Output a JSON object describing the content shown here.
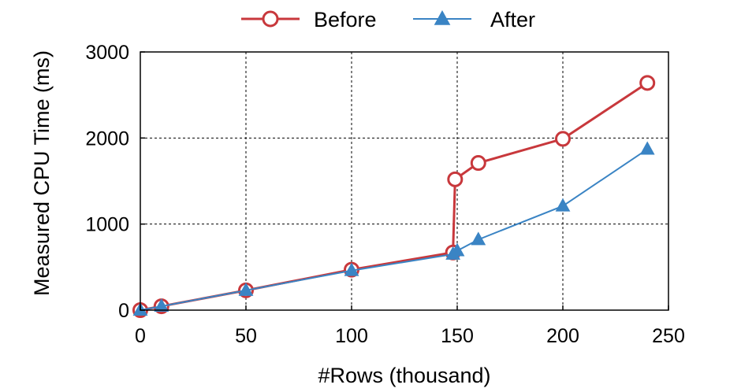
{
  "chart_data": {
    "type": "line",
    "xlabel": "#Rows (thousand)",
    "ylabel": "Measured CPU Time (ms)",
    "xlim": [
      0,
      250
    ],
    "ylim": [
      0,
      3000
    ],
    "xticks": [
      0,
      50,
      100,
      150,
      200,
      250
    ],
    "yticks": [
      0,
      1000,
      2000,
      3000
    ],
    "grid": true,
    "legend_position": "top",
    "series": [
      {
        "name": "Before",
        "color": "#c8383c",
        "marker": "open-circle",
        "x": [
          0,
          10,
          50,
          100,
          148,
          149,
          160,
          200,
          240
        ],
        "y": [
          0,
          45,
          230,
          470,
          670,
          1520,
          1710,
          1990,
          2640
        ]
      },
      {
        "name": "After",
        "color": "#3a84c4",
        "marker": "filled-triangle",
        "x": [
          0,
          10,
          50,
          100,
          148,
          150,
          160,
          200,
          240
        ],
        "y": [
          0,
          45,
          230,
          460,
          650,
          690,
          820,
          1210,
          1870
        ]
      }
    ]
  }
}
